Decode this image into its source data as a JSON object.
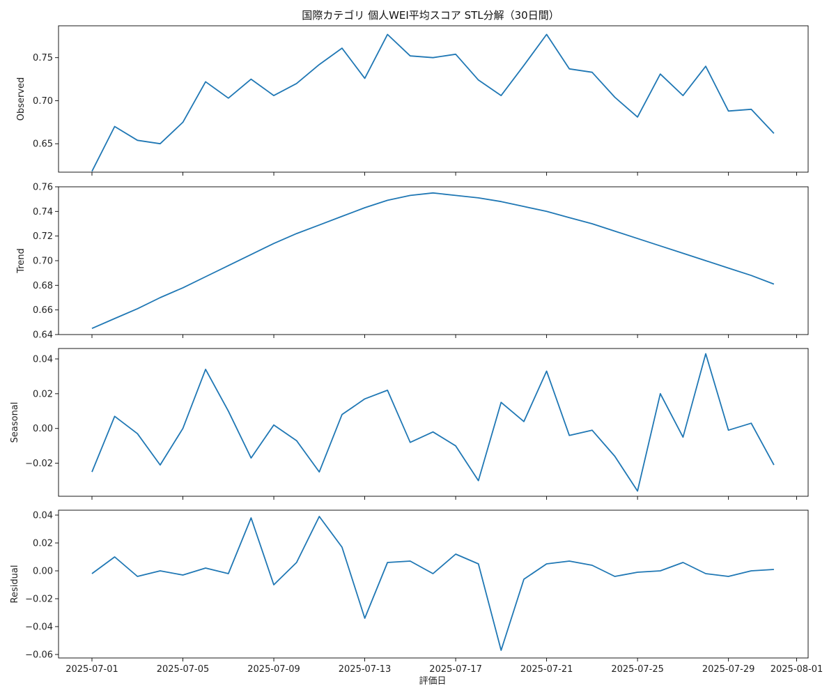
{
  "figure": {
    "title": "国際カテゴリ 個人WEI平均スコア STL分解（30日間）",
    "xlabel": "評価日",
    "x_ticks": [
      "2025-07-01",
      "2025-07-05",
      "2025-07-09",
      "2025-07-13",
      "2025-07-17",
      "2025-07-21",
      "2025-07-25",
      "2025-07-29",
      "2025-08-01"
    ],
    "line_color": "#1f77b4"
  },
  "chart_data": [
    {
      "type": "line",
      "ylabel": "Observed",
      "x_start": "2025-07-01",
      "x_end": "2025-07-31",
      "ylim": [
        0.617,
        0.787
      ],
      "y_ticks": [
        "0.65",
        "0.70",
        "0.75"
      ],
      "y_tick_values": [
        0.65,
        0.7,
        0.75
      ],
      "values": [
        0.618,
        0.67,
        0.654,
        0.65,
        0.675,
        0.722,
        0.703,
        0.725,
        0.706,
        0.72,
        0.742,
        0.761,
        0.726,
        0.777,
        0.752,
        0.75,
        0.754,
        0.724,
        0.706,
        0.741,
        0.777,
        0.737,
        0.733,
        0.704,
        0.681,
        0.731,
        0.706,
        0.74,
        0.688,
        0.69,
        0.662
      ]
    },
    {
      "type": "line",
      "ylabel": "Trend",
      "x_start": "2025-07-01",
      "x_end": "2025-07-31",
      "ylim": [
        0.64,
        0.76
      ],
      "y_ticks": [
        "0.64",
        "0.66",
        "0.68",
        "0.70",
        "0.72",
        "0.74",
        "0.76"
      ],
      "y_tick_values": [
        0.64,
        0.66,
        0.68,
        0.7,
        0.72,
        0.74,
        0.76
      ],
      "values": [
        0.645,
        0.653,
        0.661,
        0.67,
        0.678,
        0.687,
        0.696,
        0.705,
        0.714,
        0.722,
        0.729,
        0.736,
        0.743,
        0.749,
        0.753,
        0.755,
        0.753,
        0.751,
        0.748,
        0.744,
        0.74,
        0.735,
        0.73,
        0.724,
        0.718,
        0.712,
        0.706,
        0.7,
        0.694,
        0.688,
        0.681
      ]
    },
    {
      "type": "line",
      "ylabel": "Seasonal",
      "x_start": "2025-07-01",
      "x_end": "2025-07-31",
      "ylim": [
        -0.039,
        0.046
      ],
      "y_ticks": [
        "−0.02",
        "0.00",
        "0.02",
        "0.04"
      ],
      "y_tick_values": [
        -0.02,
        0.0,
        0.02,
        0.04
      ],
      "values": [
        -0.025,
        0.007,
        -0.003,
        -0.021,
        0.0,
        0.034,
        0.01,
        -0.017,
        0.002,
        -0.007,
        -0.025,
        0.008,
        0.017,
        0.022,
        -0.008,
        -0.002,
        -0.01,
        -0.03,
        0.015,
        0.004,
        0.033,
        -0.004,
        -0.001,
        -0.016,
        -0.036,
        0.02,
        -0.005,
        0.043,
        -0.001,
        0.003,
        -0.021
      ]
    },
    {
      "type": "line",
      "ylabel": "Residual",
      "x_start": "2025-07-01",
      "x_end": "2025-07-31",
      "ylim": [
        -0.0625,
        0.0435
      ],
      "y_ticks": [
        "−0.06",
        "−0.04",
        "−0.02",
        "0.00",
        "0.02",
        "0.04"
      ],
      "y_tick_values": [
        -0.06,
        -0.04,
        -0.02,
        0.0,
        0.02,
        0.04
      ],
      "values": [
        -0.002,
        0.01,
        -0.004,
        0.0,
        -0.003,
        0.002,
        -0.002,
        0.038,
        -0.01,
        0.006,
        0.039,
        0.017,
        -0.034,
        0.006,
        0.007,
        -0.002,
        0.012,
        0.005,
        -0.057,
        -0.006,
        0.005,
        0.007,
        0.004,
        -0.004,
        -0.001,
        0.0,
        0.006,
        -0.002,
        -0.004,
        0.0,
        0.001
      ]
    }
  ]
}
